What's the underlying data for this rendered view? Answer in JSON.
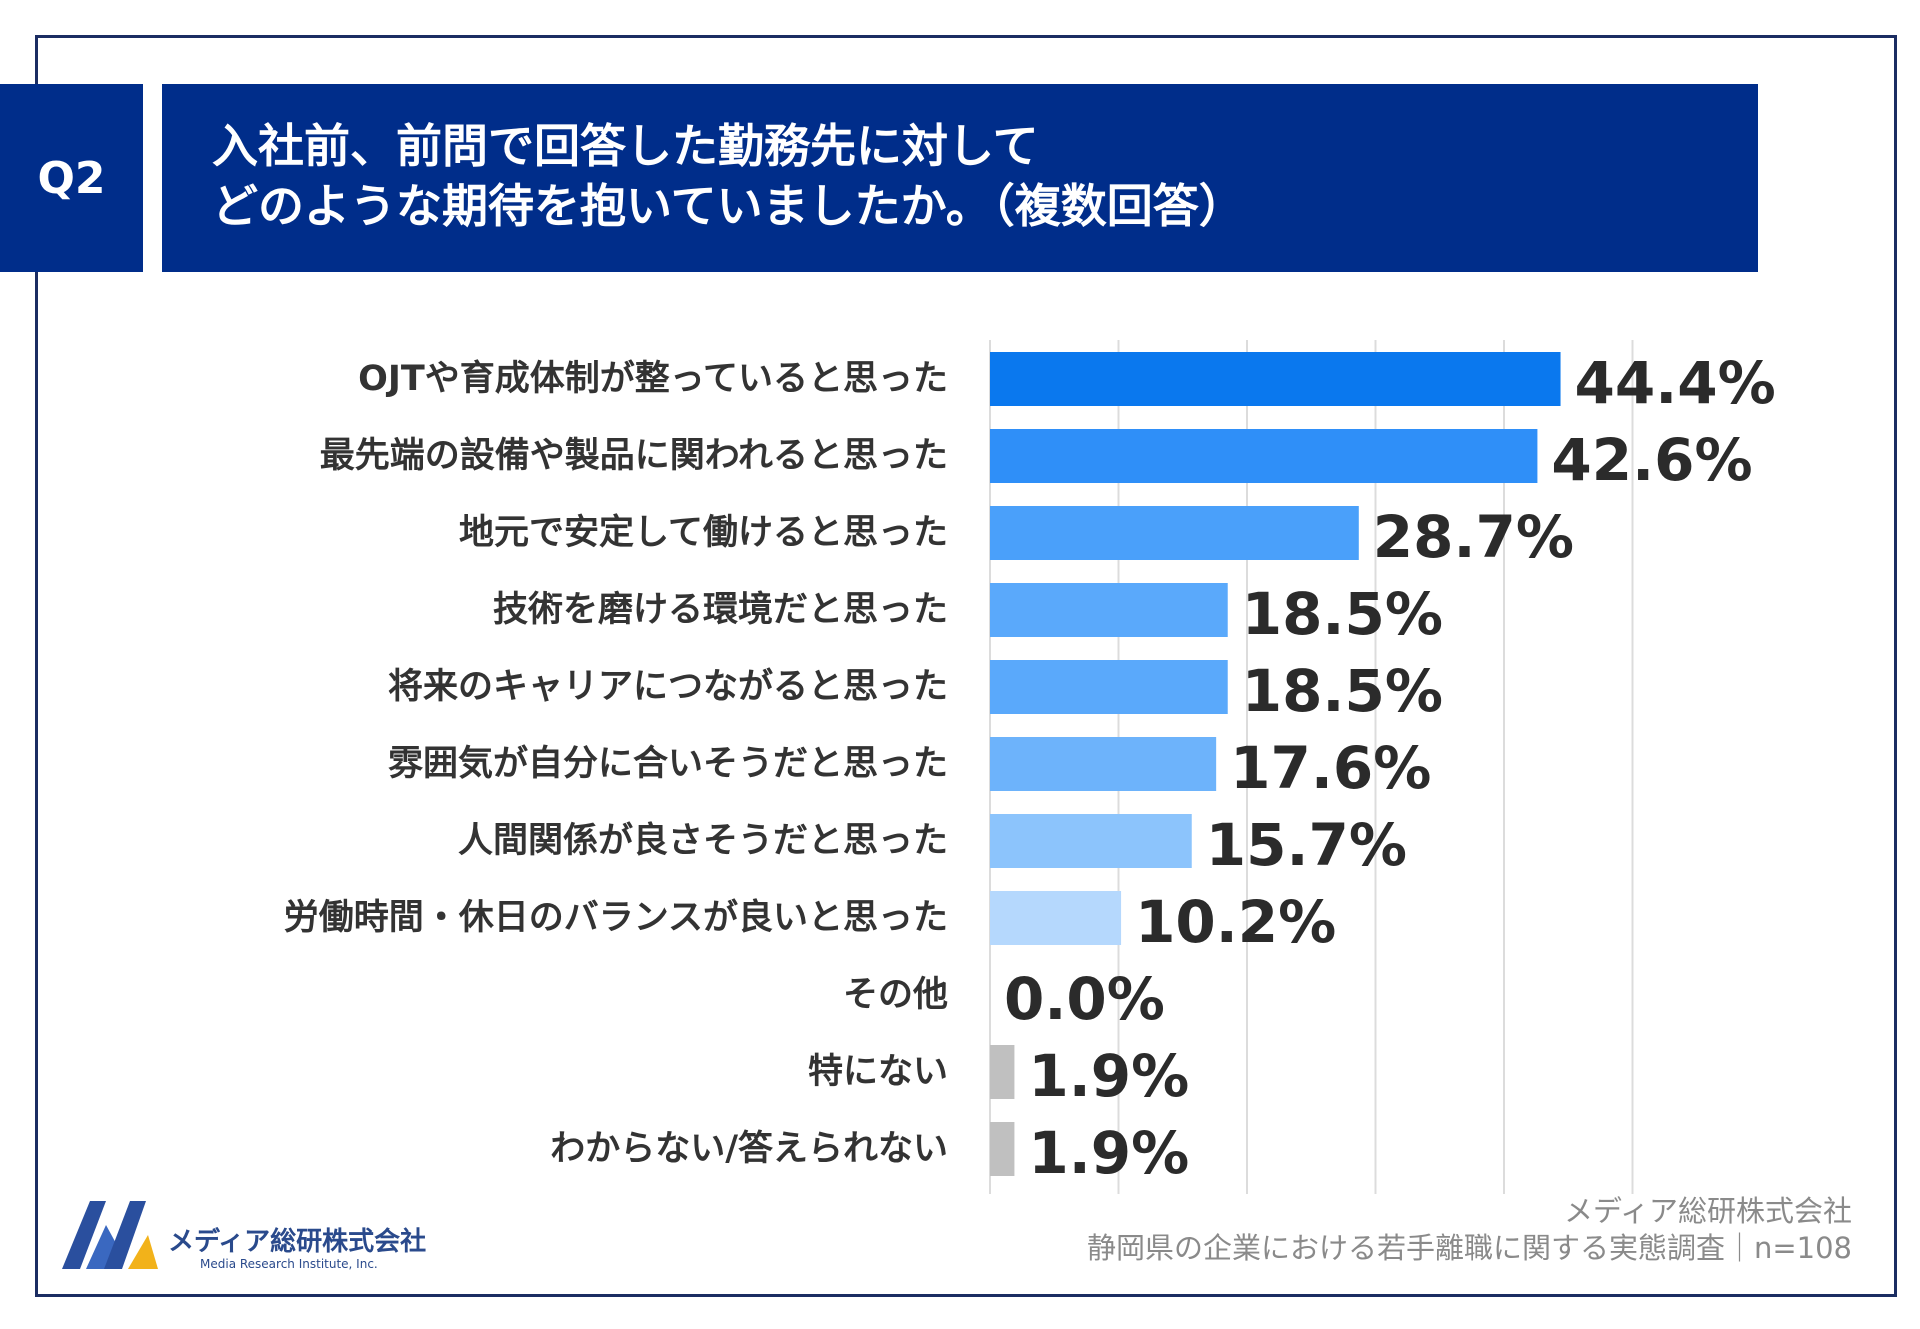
{
  "question": {
    "tab": "Q2",
    "line1": "入社前、前問で回答した勤務先に対して",
    "line2": "どのような期待を抱いていましたか。（複数回答）"
  },
  "chart_data": {
    "type": "bar",
    "orientation": "horizontal",
    "title": "入社前、前問で回答した勤務先に対して どのような期待を抱いていましたか。（複数回答）",
    "categories": [
      "OJTや育成体制が整っていると思った",
      "最先端の設備や製品に関われると思った",
      "地元で安定して働けると思った",
      "技術を磨ける環境だと思った",
      "将来のキャリアにつながると思った",
      "雰囲気が自分に合いそうだと思った",
      "人間関係が良さそうだと思った",
      "労働時間・休日のバランスが良いと思った",
      "その他",
      "特にない",
      "わからない/答えられない"
    ],
    "values": [
      44.4,
      42.6,
      28.7,
      18.5,
      18.5,
      17.6,
      15.7,
      10.2,
      0.0,
      1.9,
      1.9
    ],
    "value_labels": [
      "44.4%",
      "42.6%",
      "28.7%",
      "18.5%",
      "18.5%",
      "17.6%",
      "15.7%",
      "10.2%",
      "0.0%",
      "1.9%",
      "1.9%"
    ],
    "bar_colors": [
      "#0a78ee",
      "#2f8ff8",
      "#4aa0fa",
      "#5aa9fb",
      "#5aa9fb",
      "#6db3fb",
      "#8cc4fc",
      "#b5d8fd",
      "#c0c0c0",
      "#c0c0c0",
      "#c0c0c0"
    ],
    "xlim": [
      0,
      50
    ],
    "grid_step": 10,
    "grid": true,
    "xlabel": "",
    "ylabel": ""
  },
  "logo": {
    "name": "メディア総研株式会社",
    "sub": "Media Research Institute, Inc."
  },
  "source": {
    "line1": "メディア総研株式会社",
    "line2": "静岡県の企業における若手離職に関する実態調査｜n=108"
  },
  "colors": {
    "navy": "#002d8a",
    "grid": "#dcdcdc"
  }
}
